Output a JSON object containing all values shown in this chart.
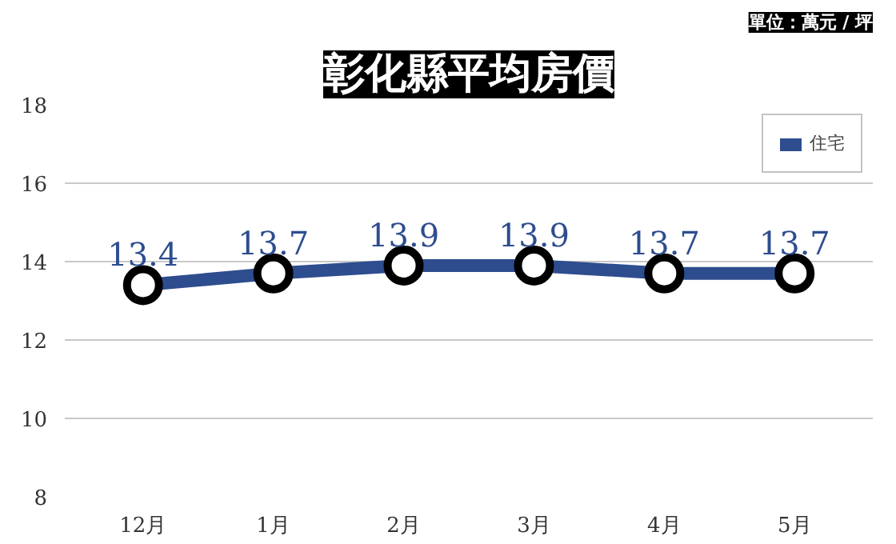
{
  "chart_data": {
    "type": "line",
    "title": "彰化縣平均房價",
    "annotations": [
      "單位：萬元 / 坪"
    ],
    "categories": [
      "12月",
      "1月",
      "2月",
      "3月",
      "4月",
      "5月"
    ],
    "series": [
      {
        "name": "住宅",
        "color": "#2e4d8f",
        "values": [
          13.4,
          13.7,
          13.9,
          13.9,
          13.7,
          13.7
        ]
      }
    ],
    "ylim": [
      8,
      18
    ],
    "yticks": [
      8,
      10,
      12,
      14,
      16,
      18
    ],
    "grid": "y",
    "legend": "top right",
    "marker": "circle",
    "data_labels": true
  }
}
